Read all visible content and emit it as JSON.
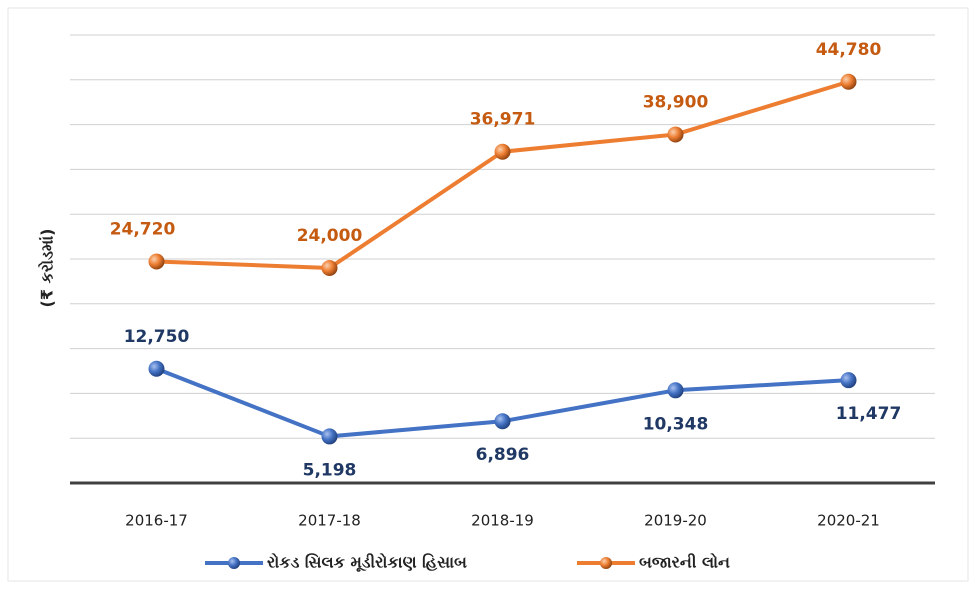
{
  "chart_data": {
    "type": "line",
    "y_label": "(₹ કરોડમાં)",
    "categories": [
      "2016-17",
      "2017-18",
      "2018-19",
      "2019-20",
      "2020-21"
    ],
    "series": [
      {
        "name": "રોકડ સિલક મૂડીરોકાણ હિસાબ",
        "color": "#4472c4",
        "label_color": "#203864",
        "values": [
          12750,
          5198,
          6896,
          10348,
          11477
        ],
        "value_labels": [
          "12,750",
          "5,198",
          "6,896",
          "10,348",
          "11,477"
        ]
      },
      {
        "name": "બજારની લોન",
        "color": "#ed7d31",
        "label_color": "#c55a11",
        "values": [
          24720,
          24000,
          36971,
          38900,
          44780
        ],
        "value_labels": [
          "24,720",
          "24,000",
          "36,971",
          "38,900",
          "44,780"
        ]
      }
    ],
    "ylim": [
      0,
      50000
    ],
    "yticks": [
      0,
      5000,
      10000,
      15000,
      20000,
      25000,
      30000,
      35000,
      40000,
      45000,
      50000
    ],
    "grid": true
  }
}
